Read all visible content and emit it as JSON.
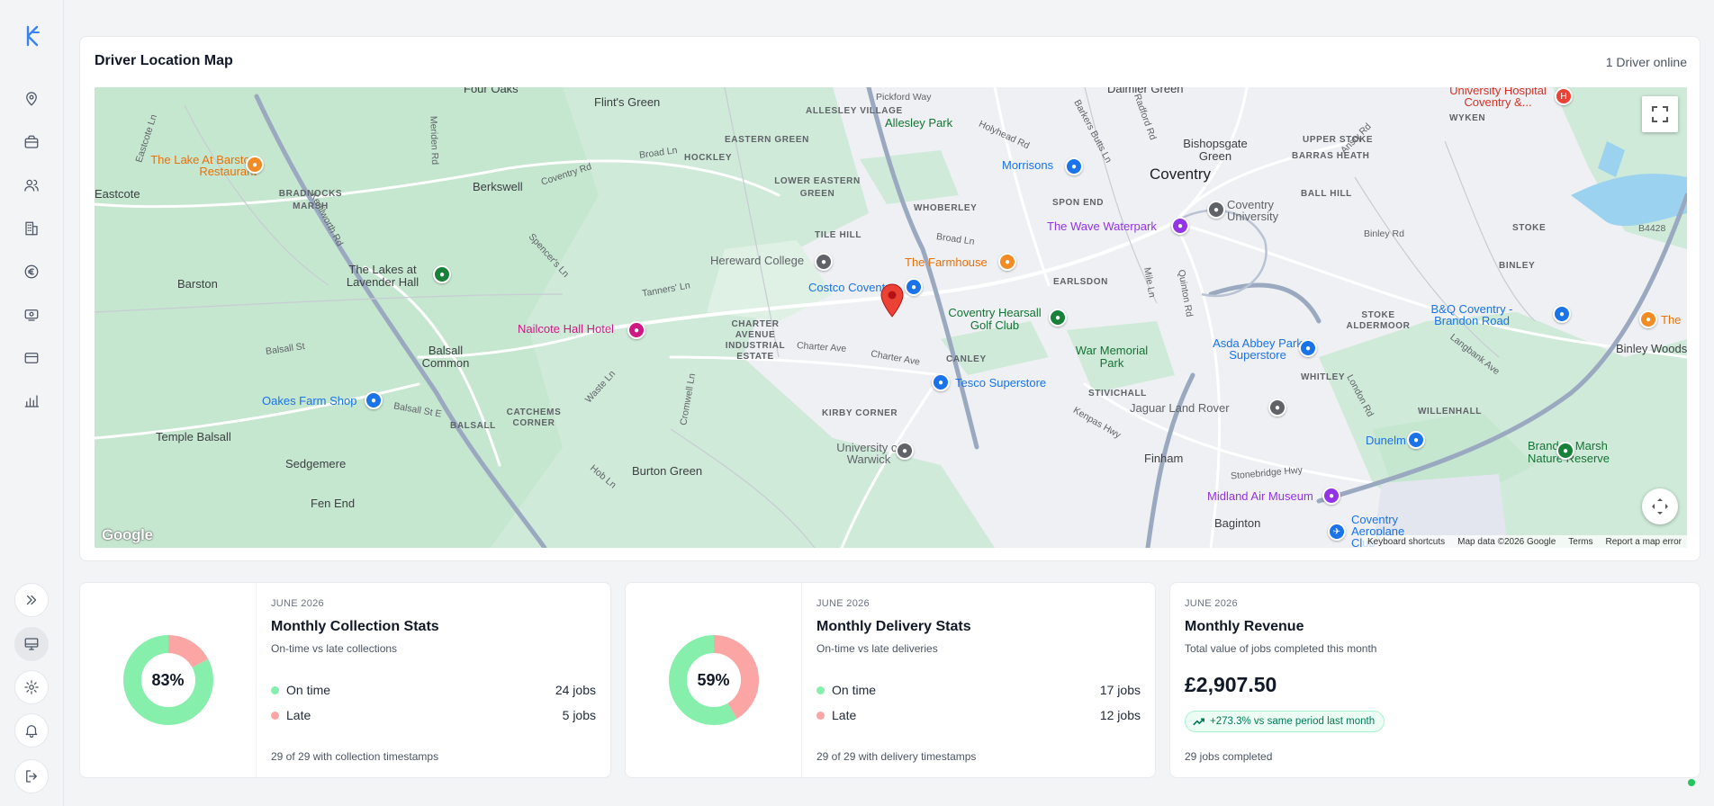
{
  "sidebar": {
    "logo": "kf-logo",
    "nav": [
      "map-pin-icon",
      "briefcase-icon",
      "users-icon",
      "building-icon",
      "euro-icon",
      "monitor-cash-icon",
      "credit-card-icon",
      "bar-chart-icon"
    ],
    "bottom": [
      "expand-chevrons-icon",
      "monitor-icon",
      "gear-icon",
      "bell-icon",
      "logout-icon"
    ]
  },
  "map_card": {
    "title": "Driver Location Map",
    "online": "1 Driver online",
    "labels": {
      "four_oaks": "Four Oaks",
      "flint_green": "Flint's Green",
      "pickford_way": "Pickford Way",
      "allesley_village": "ALLESLEY VILLAGE",
      "allesley_park": "Allesley Park",
      "daimler_green": "Daimler Green",
      "university_hospital": "University Hospital Coventry &...",
      "wyken": "WYKEN",
      "eastcote_ln": "Eastcote Ln",
      "lake_barston": "The Lake At Barston Restaurant",
      "meriden_rd": "Meriden Rd",
      "eastern_green": "EASTERN GREEN",
      "broad_ln": "Broad Ln",
      "hockley": "HOCKLEY",
      "holyhead_rd": "Holyhead Rd",
      "barkers_butts": "Barkers Butts Ln",
      "radford_rd": "Radford Rd",
      "bishopsgate": "Bishopsgate Green",
      "upper_stoke": "UPPER STOKE",
      "ansty_rd": "Ansty Rd",
      "barras_heath": "BARRAS HEATH",
      "morrisons": "Morrisons",
      "coventry": "Coventry",
      "eastcote": "Eastcote",
      "bradnocks": "BRADNOCKS MARSH",
      "berkswell": "Berkswell",
      "coventry_rd": "Coventry Rd",
      "lower_eastern_green": "LOWER EASTERN GREEN",
      "whoberley": "WHOBERLEY",
      "spon_end": "SPON END",
      "coventry_university": "Coventry University",
      "ball_hill": "BALL HILL",
      "binley_rd": "Binley Rd",
      "stoke": "STOKE",
      "b4428": "B4428",
      "kenilworth_rd": "Kenilworth Rd",
      "tile_hill": "TILE HILL",
      "wave_waterpark": "The Wave Waterpark",
      "lakes_lavender": "The Lakes at Lavender Hall",
      "spencers_ln": "Spencer's Ln",
      "hereward_college": "Hereward College",
      "farmhouse": "The Farmhouse",
      "binley": "BINLEY",
      "barston": "Barston",
      "tanners_ln": "Tanners' Ln",
      "costco": "Costco Coventry",
      "earlsdon": "EARLSDON",
      "mile_ln": "Mile Ln",
      "quinton_rd": "Quinton Rd",
      "bq": "B&Q Coventry - Brandon Road",
      "the_right": "The",
      "nailcote": "Nailcote Hall Hotel",
      "charter_avenue": "CHARTER AVENUE INDUSTRIAL ESTATE",
      "coventry_hearsall": "Coventry Hearsall Golf Club",
      "stoke_aldermoor": "STOKE ALDERMOOR",
      "balsall_st": "Balsall St",
      "balsall_common": "Balsall Common",
      "charter_ave": "Charter Ave",
      "charter_ave2": "Charter Ave",
      "canley": "CANLEY",
      "war_memorial": "War Memorial Park",
      "asda": "Asda Abbey Park Superstore",
      "langbank": "Langbank Ave",
      "binley_woods": "Binley Woods",
      "cromwell_ln": "Cromwell Ln",
      "waste_ln": "Waste Ln",
      "tesco": "Tesco Superstore",
      "stivichall": "STIVICHALL",
      "whitley": "WHITLEY",
      "london_rd": "London Rd",
      "oakes_farm": "Oakes Farm Shop",
      "balsall_st_e": "Balsall St E",
      "balsall": "BALSALL",
      "catchems": "CATCHEMS CORNER",
      "kirby_corner": "KIRBY CORNER",
      "jaguar": "Jaguar Land Rover",
      "willenhall": "WILLENHALL",
      "temple_balsall": "Temple Balsall",
      "university_warwick": "University of Warwick",
      "kenpas_hwy": "Kenpas Hwy",
      "dunelm": "Dunelm",
      "brandon_marsh": "Brandon Marsh Nature Reserve",
      "sedgemere": "Sedgemere",
      "burton_green": "Burton Green",
      "hob_ln": "Hob Ln",
      "finham": "Finham",
      "stonebridge": "Stonebridge Hwy",
      "midland_air": "Midland Air Museum",
      "fen_end": "Fen End",
      "baginton": "Baginton",
      "coventry_aeroplane": "Coventry Aeroplane Club",
      "google": "Google",
      "keyboard": "Keyboard shortcuts",
      "mapdata": "Map data ©2026 Google",
      "terms": "Terms",
      "report": "Report a map error"
    }
  },
  "collection": {
    "eyebrow": "JUNE 2026",
    "title": "Monthly Collection Stats",
    "subtitle": "On-time vs late collections",
    "percent_label": "83%",
    "on_time_label": "On time",
    "on_time_value": "24 jobs",
    "late_label": "Late",
    "late_value": "5 jobs",
    "footer": "29 of 29 with collection timestamps",
    "on_time_count": 24,
    "late_count": 5
  },
  "delivery": {
    "eyebrow": "JUNE 2026",
    "title": "Monthly Delivery Stats",
    "subtitle": "On-time vs late deliveries",
    "percent_label": "59%",
    "on_time_label": "On time",
    "on_time_value": "17 jobs",
    "late_label": "Late",
    "late_value": "12 jobs",
    "footer": "29 of 29 with delivery timestamps",
    "on_time_count": 17,
    "late_count": 12
  },
  "revenue": {
    "eyebrow": "JUNE 2026",
    "title": "Monthly Revenue",
    "subtitle": "Total value of jobs completed this month",
    "amount": "£2,907.50",
    "change": "+273.3% vs same period last month",
    "footer": "29 jobs completed"
  },
  "colors": {
    "on_time": "#86efac",
    "late": "#fca5a5",
    "online": "#22c55e",
    "pin": "#ea4335"
  }
}
